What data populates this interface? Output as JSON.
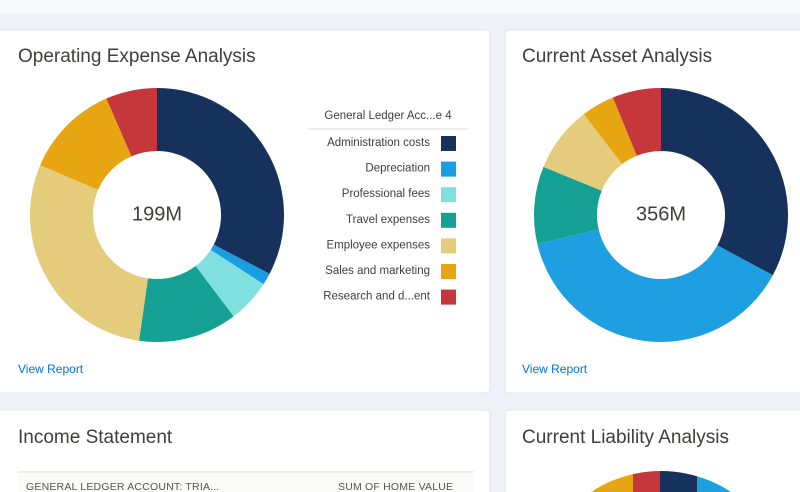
{
  "chart_data": [
    {
      "type": "donut",
      "title": "Operating Expense Analysis",
      "center_label": "199M",
      "legend_title": "General Ledger Acc...e 4",
      "categories": [
        "Administration costs",
        "Depreciation",
        "Professional fees",
        "Travel expenses",
        "Employee expenses",
        "Sales and marketing",
        "Research and d...ent"
      ],
      "values": [
        65,
        3,
        11,
        25,
        58,
        24,
        13
      ],
      "colors": [
        "#16325c",
        "#1b9de2",
        "#7fe0df",
        "#14a092",
        "#e5cc7c",
        "#e8a512",
        "#c6373b"
      ]
    },
    {
      "type": "donut",
      "title": "Current Asset Analysis",
      "center_label": "356M",
      "values": [
        117,
        137,
        35,
        30,
        15,
        22
      ],
      "colors": [
        "#16325c",
        "#1e9fe2",
        "#14a092",
        "#e5cc7c",
        "#e8a512",
        "#c6373b"
      ]
    }
  ],
  "view_report": [
    "View Report",
    "View Report"
  ],
  "income_statement": {
    "title": "Income Statement",
    "columns": [
      "GENERAL LEDGER ACCOUNT: TRIA...",
      "SUM OF HOME VALUE"
    ]
  },
  "current_liability": {
    "title": "Current Liability Analysis"
  }
}
